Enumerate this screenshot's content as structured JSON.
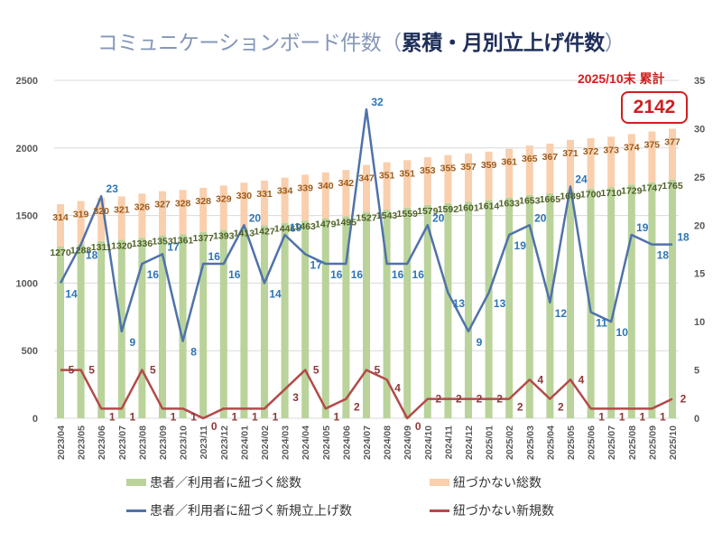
{
  "title": {
    "light": "コミュニケーションボード件数（",
    "bold": "累積・月別立上げ件数",
    "close": "）"
  },
  "callout": {
    "label": "2025/10末 累計",
    "value": "2142"
  },
  "colors": {
    "linked_total": "#b9d39a",
    "unlinked_total": "#f9cfad",
    "linked_new": "#4f72aa",
    "unlinked_new": "#b34a4a",
    "linked_total_label": "#4f6228",
    "unlinked_total_label": "#9c5a1a",
    "linked_new_label": "#2e75b6",
    "unlinked_new_label": "#8b3a3a",
    "grid": "#d9d9d9",
    "axis_text": "#595959"
  },
  "legend": [
    {
      "name": "患者／利用者に紐づく総数",
      "kind": "bar",
      "color_key": "linked_total"
    },
    {
      "name": "紐づかない総数",
      "kind": "bar",
      "color_key": "unlinked_total"
    },
    {
      "name": "患者／利用者に紐づく新規立上げ数",
      "kind": "line",
      "color_key": "linked_new"
    },
    {
      "name": "紐づかない新規数",
      "kind": "line",
      "color_key": "unlinked_new"
    }
  ],
  "chart_data": {
    "type": "bar",
    "title": "コミュニケーションボード件数（累積・月別立上げ件数）",
    "categories": [
      "2023/04",
      "2023/05",
      "2023/06",
      "2023/07",
      "2023/08",
      "2023/09",
      "2023/10",
      "2023/11",
      "2023/12",
      "2024/01",
      "2024/02",
      "2024/03",
      "2024/04",
      "2024/05",
      "2024/06",
      "2024/07",
      "2024/08",
      "2024/09",
      "2024/10",
      "2024/11",
      "2024/12",
      "2025/01",
      "2025/02",
      "2025/03",
      "2025/04",
      "2025/05",
      "2025/06",
      "2025/07",
      "2025/08",
      "2025/09",
      "2025/10"
    ],
    "y_left": {
      "min": 0,
      "max": 2500,
      "ticks": [
        0,
        500,
        1000,
        1500,
        2000,
        2500
      ]
    },
    "y_right": {
      "min": 0,
      "max": 35,
      "ticks": [
        0,
        5,
        10,
        15,
        20,
        25,
        30,
        35
      ]
    },
    "grid": true,
    "legend_position": "bottom",
    "series": [
      {
        "name": "患者／利用者に紐づく総数",
        "type": "stacked-bar",
        "axis": "left",
        "values": [
          1270,
          1288,
          1311,
          1320,
          1336,
          1353,
          1361,
          1377,
          1393,
          1413,
          1427,
          1446,
          1463,
          1479,
          1495,
          1527,
          1543,
          1559,
          1579,
          1592,
          1601,
          1614,
          1633,
          1653,
          1665,
          1689,
          1700,
          1710,
          1729,
          1747,
          1765
        ]
      },
      {
        "name": "紐づかない総数",
        "type": "stacked-bar",
        "axis": "left",
        "values": [
          314,
          319,
          320,
          321,
          326,
          327,
          328,
          328,
          329,
          330,
          331,
          334,
          339,
          340,
          342,
          347,
          351,
          351,
          353,
          355,
          357,
          359,
          361,
          365,
          367,
          371,
          372,
          373,
          374,
          375,
          377
        ]
      },
      {
        "name": "患者／利用者に紐づく新規立上げ数",
        "type": "line",
        "axis": "right",
        "values": [
          14,
          18,
          23,
          9,
          16,
          17,
          8,
          16,
          16,
          20,
          14,
          19,
          17,
          16,
          16,
          32,
          16,
          16,
          20,
          13,
          9,
          13,
          19,
          20,
          12,
          24,
          11,
          10,
          19,
          18,
          18
        ]
      },
      {
        "name": "紐づかない新規数",
        "type": "line",
        "axis": "right",
        "values": [
          5,
          5,
          1,
          1,
          5,
          1,
          1,
          0,
          1,
          1,
          1,
          3,
          5,
          1,
          2,
          5,
          4,
          0,
          2,
          2,
          2,
          2,
          2,
          4,
          2,
          4,
          1,
          1,
          1,
          1,
          2
        ]
      }
    ],
    "annotation": {
      "label": "2025/10末 累計",
      "value": 2142
    }
  }
}
